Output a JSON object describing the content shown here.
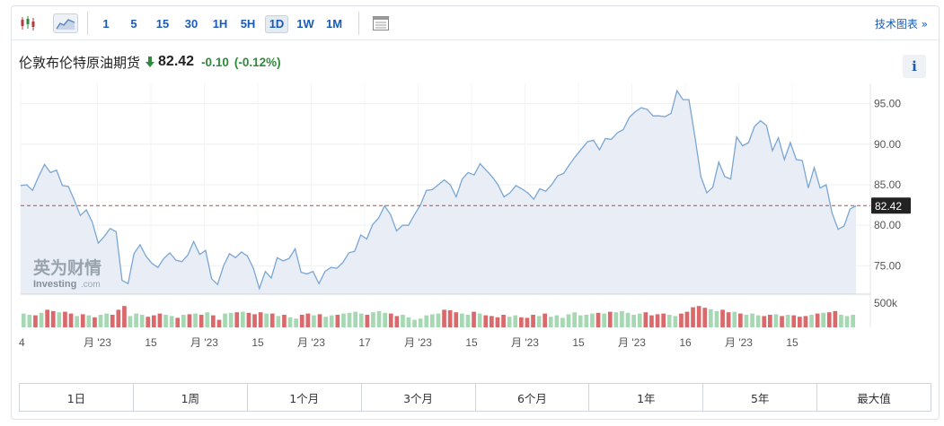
{
  "toolbar": {
    "candlestick_icon": "candlestick-icon",
    "area_icon": "area-chart-icon",
    "timeframes": [
      "1",
      "5",
      "15",
      "30",
      "1H",
      "5H",
      "1D",
      "1W",
      "1M"
    ],
    "active_timeframe": "1D",
    "table_icon": "table-icon",
    "tech_chart_label": "技术图表 »"
  },
  "header": {
    "title": "伦敦布伦特原油期货",
    "direction_icon": "down-arrow-icon",
    "price": "82.42",
    "change": "-0.10",
    "change_pct": "(-0.12%)",
    "change_color": "#2f8a3c",
    "info_label": "i"
  },
  "watermark": {
    "cn": "英为财情",
    "en": "Investing",
    "en_suffix": ".com"
  },
  "range_buttons": [
    "1日",
    "1周",
    "1个月",
    "3个月",
    "6个月",
    "1年",
    "5年",
    "最大值"
  ],
  "chart_data": {
    "type": "area",
    "title": "",
    "xlabel": "",
    "ylabel": "",
    "ylim": [
      71.5,
      97.5
    ],
    "y_ticks": [
      75,
      80,
      85,
      90,
      95
    ],
    "y_tick_labels": [
      "75.00",
      "80.00",
      "85.00",
      "90.00",
      "95.00"
    ],
    "x_tick_labels": [
      "4",
      "月 '23",
      "15",
      "月 '23",
      "15",
      "月 '23",
      "17",
      "月 '23",
      "15",
      "月 '23",
      "15",
      "月 '23",
      "16",
      "月 '23",
      "15"
    ],
    "current_price": 82.42,
    "current_price_label": "82.42",
    "volume_label": "500k",
    "grid": true,
    "line_color": "#7aa6d4",
    "fill_color": "#e9eef6",
    "volume_up_color": "#a6d9b3",
    "volume_down_color": "#d9696b",
    "series": [
      {
        "values": [
          84.9,
          85.0,
          84.3,
          86.0,
          87.5,
          86.5,
          86.8,
          84.9,
          84.8,
          83.1,
          81.2,
          81.9,
          80.4,
          77.8,
          78.6,
          79.6,
          79.2,
          73.2,
          72.8,
          76.5,
          77.6,
          76.2,
          75.3,
          74.8,
          75.9,
          76.6,
          75.7,
          75.5,
          76.3,
          78.0,
          76.4,
          76.9,
          73.4,
          72.7,
          75.0,
          76.5,
          76.0,
          76.7,
          76.2,
          74.7,
          72.2,
          74.3,
          73.5,
          76.0,
          75.6,
          75.9,
          77.1,
          74.2,
          74.0,
          74.3,
          72.8,
          74.3,
          74.8,
          74.7,
          75.4,
          76.6,
          76.8,
          78.8,
          78.3,
          80.1,
          80.9,
          82.4,
          81.3,
          79.3,
          80.0,
          80.0,
          81.3,
          82.5,
          84.3,
          84.4,
          85.0,
          85.6,
          85.0,
          83.5,
          85.7,
          86.5,
          86.2,
          87.6,
          86.8,
          86.0,
          85.0,
          83.5,
          84.0,
          84.9,
          84.5,
          84.0,
          83.2,
          84.5,
          84.2,
          85.0,
          86.1,
          86.4,
          87.5,
          88.5,
          89.4,
          90.3,
          90.5,
          89.3,
          90.7,
          90.6,
          91.4,
          91.8,
          93.3,
          94.0,
          94.5,
          94.3,
          93.5,
          93.5,
          93.4,
          93.8,
          96.6,
          95.5,
          95.5,
          91.0,
          86.0,
          84.0,
          84.7,
          87.8,
          86.0,
          85.7,
          90.9,
          89.8,
          90.2,
          92.2,
          92.9,
          92.3,
          89.2,
          90.8,
          88.1,
          90.2,
          88.1,
          88.0,
          84.6,
          87.1,
          84.6,
          85.0,
          81.5,
          79.5,
          79.9,
          82.0,
          82.4
        ]
      }
    ],
    "volume": {
      "values": [
        0.55,
        0.5,
        0.48,
        0.58,
        0.7,
        0.65,
        0.6,
        0.62,
        0.55,
        0.45,
        0.52,
        0.48,
        0.4,
        0.5,
        0.55,
        0.5,
        0.7,
        0.85,
        0.45,
        0.55,
        0.5,
        0.42,
        0.48,
        0.55,
        0.5,
        0.45,
        0.38,
        0.5,
        0.52,
        0.55,
        0.5,
        0.6,
        0.48,
        0.3,
        0.55,
        0.58,
        0.6,
        0.62,
        0.58,
        0.52,
        0.6,
        0.55,
        0.55,
        0.45,
        0.5,
        0.4,
        0.35,
        0.5,
        0.55,
        0.48,
        0.52,
        0.42,
        0.48,
        0.5,
        0.55,
        0.58,
        0.62,
        0.55,
        0.5,
        0.6,
        0.65,
        0.58,
        0.55,
        0.45,
        0.5,
        0.4,
        0.3,
        0.35,
        0.48,
        0.52,
        0.55,
        0.7,
        0.68,
        0.6,
        0.55,
        0.5,
        0.62,
        0.55,
        0.48,
        0.45,
        0.4,
        0.5,
        0.42,
        0.48,
        0.4,
        0.38,
        0.5,
        0.45,
        0.55,
        0.42,
        0.48,
        0.38,
        0.52,
        0.6,
        0.48,
        0.5,
        0.55,
        0.58,
        0.55,
        0.62,
        0.6,
        0.65,
        0.58,
        0.5,
        0.55,
        0.6,
        0.48,
        0.52,
        0.55,
        0.5,
        0.45,
        0.55,
        0.62,
        0.8,
        0.85,
        0.78,
        0.72,
        0.65,
        0.7,
        0.6,
        0.62,
        0.55,
        0.5,
        0.55,
        0.48,
        0.45,
        0.5,
        0.52,
        0.45,
        0.5,
        0.48,
        0.42,
        0.45,
        0.5,
        0.55,
        0.58,
        0.6,
        0.65,
        0.5,
        0.45,
        0.5
      ],
      "up": [
        true,
        true,
        false,
        true,
        false,
        false,
        true,
        false,
        false,
        true,
        false,
        true,
        false,
        true,
        true,
        false,
        false,
        false,
        true,
        true,
        true,
        false,
        false,
        false,
        true,
        true,
        false,
        true,
        false,
        true,
        false,
        true,
        false,
        false,
        true,
        true,
        false,
        true,
        false,
        false,
        false,
        true,
        false,
        true,
        false,
        true,
        true,
        false,
        false,
        true,
        false,
        true,
        true,
        false,
        true,
        true,
        true,
        true,
        false,
        true,
        true,
        true,
        false,
        false,
        true,
        true,
        true,
        true,
        true,
        true,
        true,
        false,
        false,
        false,
        true,
        true,
        false,
        true,
        false,
        false,
        false,
        false,
        true,
        true,
        false,
        false,
        false,
        true,
        false,
        true,
        true,
        true,
        true,
        true,
        true,
        true,
        true,
        false,
        true,
        false,
        true,
        true,
        true,
        true,
        true,
        false,
        false,
        false,
        false,
        true,
        true,
        false,
        false,
        false,
        false,
        false,
        true,
        true,
        false,
        false,
        true,
        false,
        true,
        true,
        true,
        false,
        false,
        true,
        false,
        true,
        false,
        false,
        false,
        true,
        false,
        true,
        false,
        false,
        true,
        true,
        true
      ]
    }
  }
}
